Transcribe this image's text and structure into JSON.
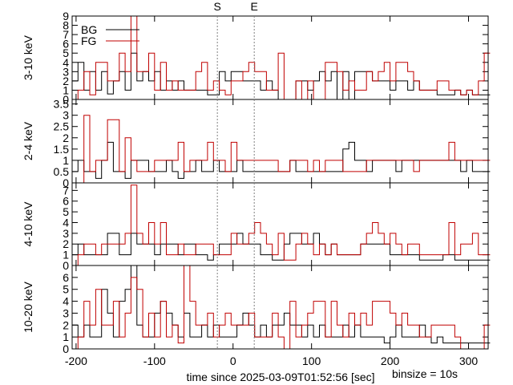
{
  "chart_data": {
    "type": "line",
    "step": true,
    "x_range": [
      -205,
      325
    ],
    "x_ticks": [
      -200,
      -100,
      0,
      100,
      200,
      300
    ],
    "x_tick_labels": [
      "-200",
      "-100",
      "0",
      "100",
      "200",
      "300"
    ],
    "xlabel": "time since 2025-03-09T01:52:56 [sec]",
    "binsize_label": "binsize = 10s",
    "markers": [
      {
        "label": "S",
        "x": -20
      },
      {
        "label": "E",
        "x": 27
      }
    ],
    "legend": {
      "position": "top-left",
      "entries": [
        {
          "label": "BG",
          "color": "#000000"
        },
        {
          "label": "FG",
          "color": "#c00000"
        }
      ]
    },
    "colors": {
      "BG": "#000000",
      "FG": "#c00000",
      "marker": "#808080"
    },
    "panels": [
      {
        "ylabel": "3-10 keV",
        "ylim": [
          0,
          9
        ],
        "y_ticks": [
          0,
          1,
          2,
          3,
          4,
          5,
          6,
          7,
          8,
          9
        ],
        "y_tick_labels": [
          "0",
          "1",
          "2",
          "3",
          "4",
          "5",
          "6",
          "7",
          "8",
          "9"
        ],
        "BG": [
          2,
          4,
          1,
          3,
          1,
          3,
          0.6,
          2,
          3,
          1,
          5,
          2,
          3,
          2,
          3,
          1,
          2,
          1,
          2,
          1,
          1,
          1,
          1,
          0.5,
          0.5,
          3,
          2,
          3,
          3,
          2,
          2,
          2,
          1,
          2,
          1,
          0,
          0,
          0,
          2,
          2,
          1,
          2,
          3,
          2,
          3,
          0,
          3,
          0,
          3,
          3,
          3,
          2,
          2,
          2,
          1,
          2,
          2,
          1,
          2,
          1,
          1,
          1,
          0.5,
          0.5,
          0.5,
          1,
          0.5,
          1,
          0.5,
          0.5,
          0.5
        ],
        "FG": [
          0,
          1,
          3,
          0.5,
          4,
          4,
          2,
          2,
          5,
          3,
          9,
          3,
          3,
          5,
          1,
          4,
          1,
          2,
          1,
          1,
          1,
          3,
          4,
          1,
          2,
          1,
          0.5,
          2,
          2,
          3,
          4,
          3,
          3,
          1,
          1,
          5,
          0,
          0,
          2,
          0,
          2,
          0,
          0,
          4,
          4,
          3,
          1,
          2,
          1,
          1,
          3,
          2,
          3,
          4,
          2,
          4,
          4,
          3,
          2,
          1,
          1,
          1,
          2,
          2,
          1,
          1,
          0.5,
          1,
          0.5,
          2,
          5
        ]
      },
      {
        "ylabel": "2-4 keV",
        "ylim": [
          0,
          3.7
        ],
        "y_ticks": [
          0,
          0.5,
          1,
          1.5,
          2,
          2.5,
          3,
          3.5
        ],
        "y_tick_labels": [
          "0",
          "0.5",
          "1",
          "1.5",
          "2",
          "2.5",
          "3",
          "3.5"
        ],
        "BG": [
          0.5,
          1,
          0.5,
          0.5,
          0.2,
          1,
          1.8,
          0.5,
          0.5,
          0.2,
          1,
          1,
          1,
          0.5,
          0.5,
          0.5,
          1,
          0.5,
          0.2,
          0.5,
          0.5,
          1,
          0.5,
          0.5,
          1,
          0.5,
          0.5,
          0.5,
          1,
          0.5,
          0.5,
          0.5,
          0.5,
          0.5,
          0.5,
          0.5,
          0.5,
          1,
          0.5,
          0.5,
          0.5,
          0.5,
          0.5,
          0.5,
          0.5,
          0.5,
          1.5,
          1.8,
          1,
          1,
          0.5,
          1,
          1,
          1,
          1,
          0.5,
          1,
          1,
          1,
          1,
          1,
          1,
          1,
          1,
          1,
          1,
          0.5,
          1,
          0.5,
          0.5,
          0.5
        ],
        "FG": [
          0,
          0,
          3,
          0.5,
          1,
          1,
          2.8,
          2.8,
          0.5,
          2,
          1,
          0.5,
          0.5,
          0.5,
          1,
          1,
          1,
          1,
          1.8,
          0.5,
          1,
          1,
          1,
          1.8,
          1,
          1,
          0.5,
          1.8,
          1,
          1,
          1,
          1,
          1,
          1,
          1,
          0.5,
          0.5,
          1,
          1,
          1,
          0.5,
          1,
          0.5,
          1,
          1,
          1,
          0.5,
          0.5,
          0.5,
          0.5,
          1,
          1,
          1,
          1,
          1,
          1,
          1,
          1,
          0.5,
          1,
          1,
          1,
          1,
          1,
          1.8,
          1,
          1,
          1,
          1,
          1,
          1
        ]
      },
      {
        "ylabel": "4-10 keV",
        "ylim": [
          0,
          7.7
        ],
        "y_ticks": [
          0,
          1,
          2,
          3,
          4,
          5,
          6,
          7
        ],
        "y_tick_labels": [
          "0",
          "1",
          "2",
          "3",
          "4",
          "5",
          "6",
          "7"
        ],
        "BG": [
          1,
          2,
          1,
          1,
          1,
          1,
          3,
          3,
          1,
          1,
          3,
          2,
          2,
          2,
          1,
          2,
          2,
          2,
          1,
          2,
          2,
          1,
          1,
          0.5,
          1,
          2,
          2,
          2,
          3,
          2,
          2,
          2,
          1,
          1,
          0.5,
          0.5,
          2,
          3,
          3,
          2,
          2,
          3,
          2,
          1,
          2,
          1,
          1,
          1,
          1,
          2,
          2,
          2,
          2,
          2,
          1,
          1,
          1,
          1,
          1,
          0.5,
          0.5,
          0.5,
          0.5,
          1,
          1,
          0.5,
          0.5,
          0.5,
          0.5,
          0.5,
          0.5
        ],
        "FG": [
          0,
          1,
          2,
          2,
          1,
          2,
          2,
          2,
          2,
          3,
          7.5,
          3,
          2,
          4,
          2,
          4,
          1,
          1,
          2,
          1,
          1,
          2,
          2,
          2,
          1,
          1,
          1,
          3,
          2,
          2,
          3,
          4,
          3,
          2,
          1,
          3,
          0.5,
          0.5,
          2,
          3,
          2,
          1,
          2,
          1,
          2,
          1,
          1,
          1,
          1,
          2,
          3,
          4,
          3,
          2,
          3,
          2,
          1,
          2,
          2,
          1,
          1,
          1,
          1,
          1,
          4,
          1,
          2,
          2,
          3,
          1,
          1
        ]
      },
      {
        "ylabel": "10-20 keV",
        "ylim": [
          0,
          7
        ],
        "y_ticks": [
          0,
          1,
          2,
          3,
          4,
          5,
          6
        ],
        "y_tick_labels": [
          "0",
          "1",
          "2",
          "3",
          "4",
          "5",
          "6"
        ],
        "BG": [
          2,
          1,
          2,
          1,
          1,
          5,
          3,
          1,
          4,
          5,
          7,
          2,
          1,
          1,
          3,
          4,
          3,
          2,
          1,
          3,
          1,
          1,
          2,
          1,
          2,
          1,
          1,
          1,
          2,
          3,
          2,
          1,
          2,
          1,
          2,
          2,
          3,
          2,
          2,
          1,
          2,
          1,
          2,
          1,
          1,
          1,
          2,
          1,
          2,
          1,
          1,
          1,
          1,
          0.5,
          1,
          2,
          1,
          1,
          1,
          2,
          1,
          0.5,
          1,
          0.5,
          0.5,
          0.5,
          0.5,
          0.5,
          0.5,
          0.5,
          0.5
        ],
        "FG": [
          0,
          1,
          4,
          2,
          5,
          2,
          2,
          4,
          1,
          3,
          6,
          5,
          1,
          3,
          1,
          4,
          1,
          2,
          0.5,
          7,
          4,
          2,
          2,
          3,
          1,
          2,
          3,
          2,
          2,
          2,
          3,
          1,
          1,
          1,
          3,
          1,
          0,
          4,
          1,
          2,
          3,
          4,
          4,
          1,
          4,
          2,
          1,
          3,
          2,
          3,
          2,
          4,
          4,
          4,
          3,
          2,
          3,
          2,
          2,
          1,
          1,
          2,
          2,
          2,
          2,
          1,
          0,
          0,
          0,
          0,
          2
        ]
      }
    ]
  }
}
